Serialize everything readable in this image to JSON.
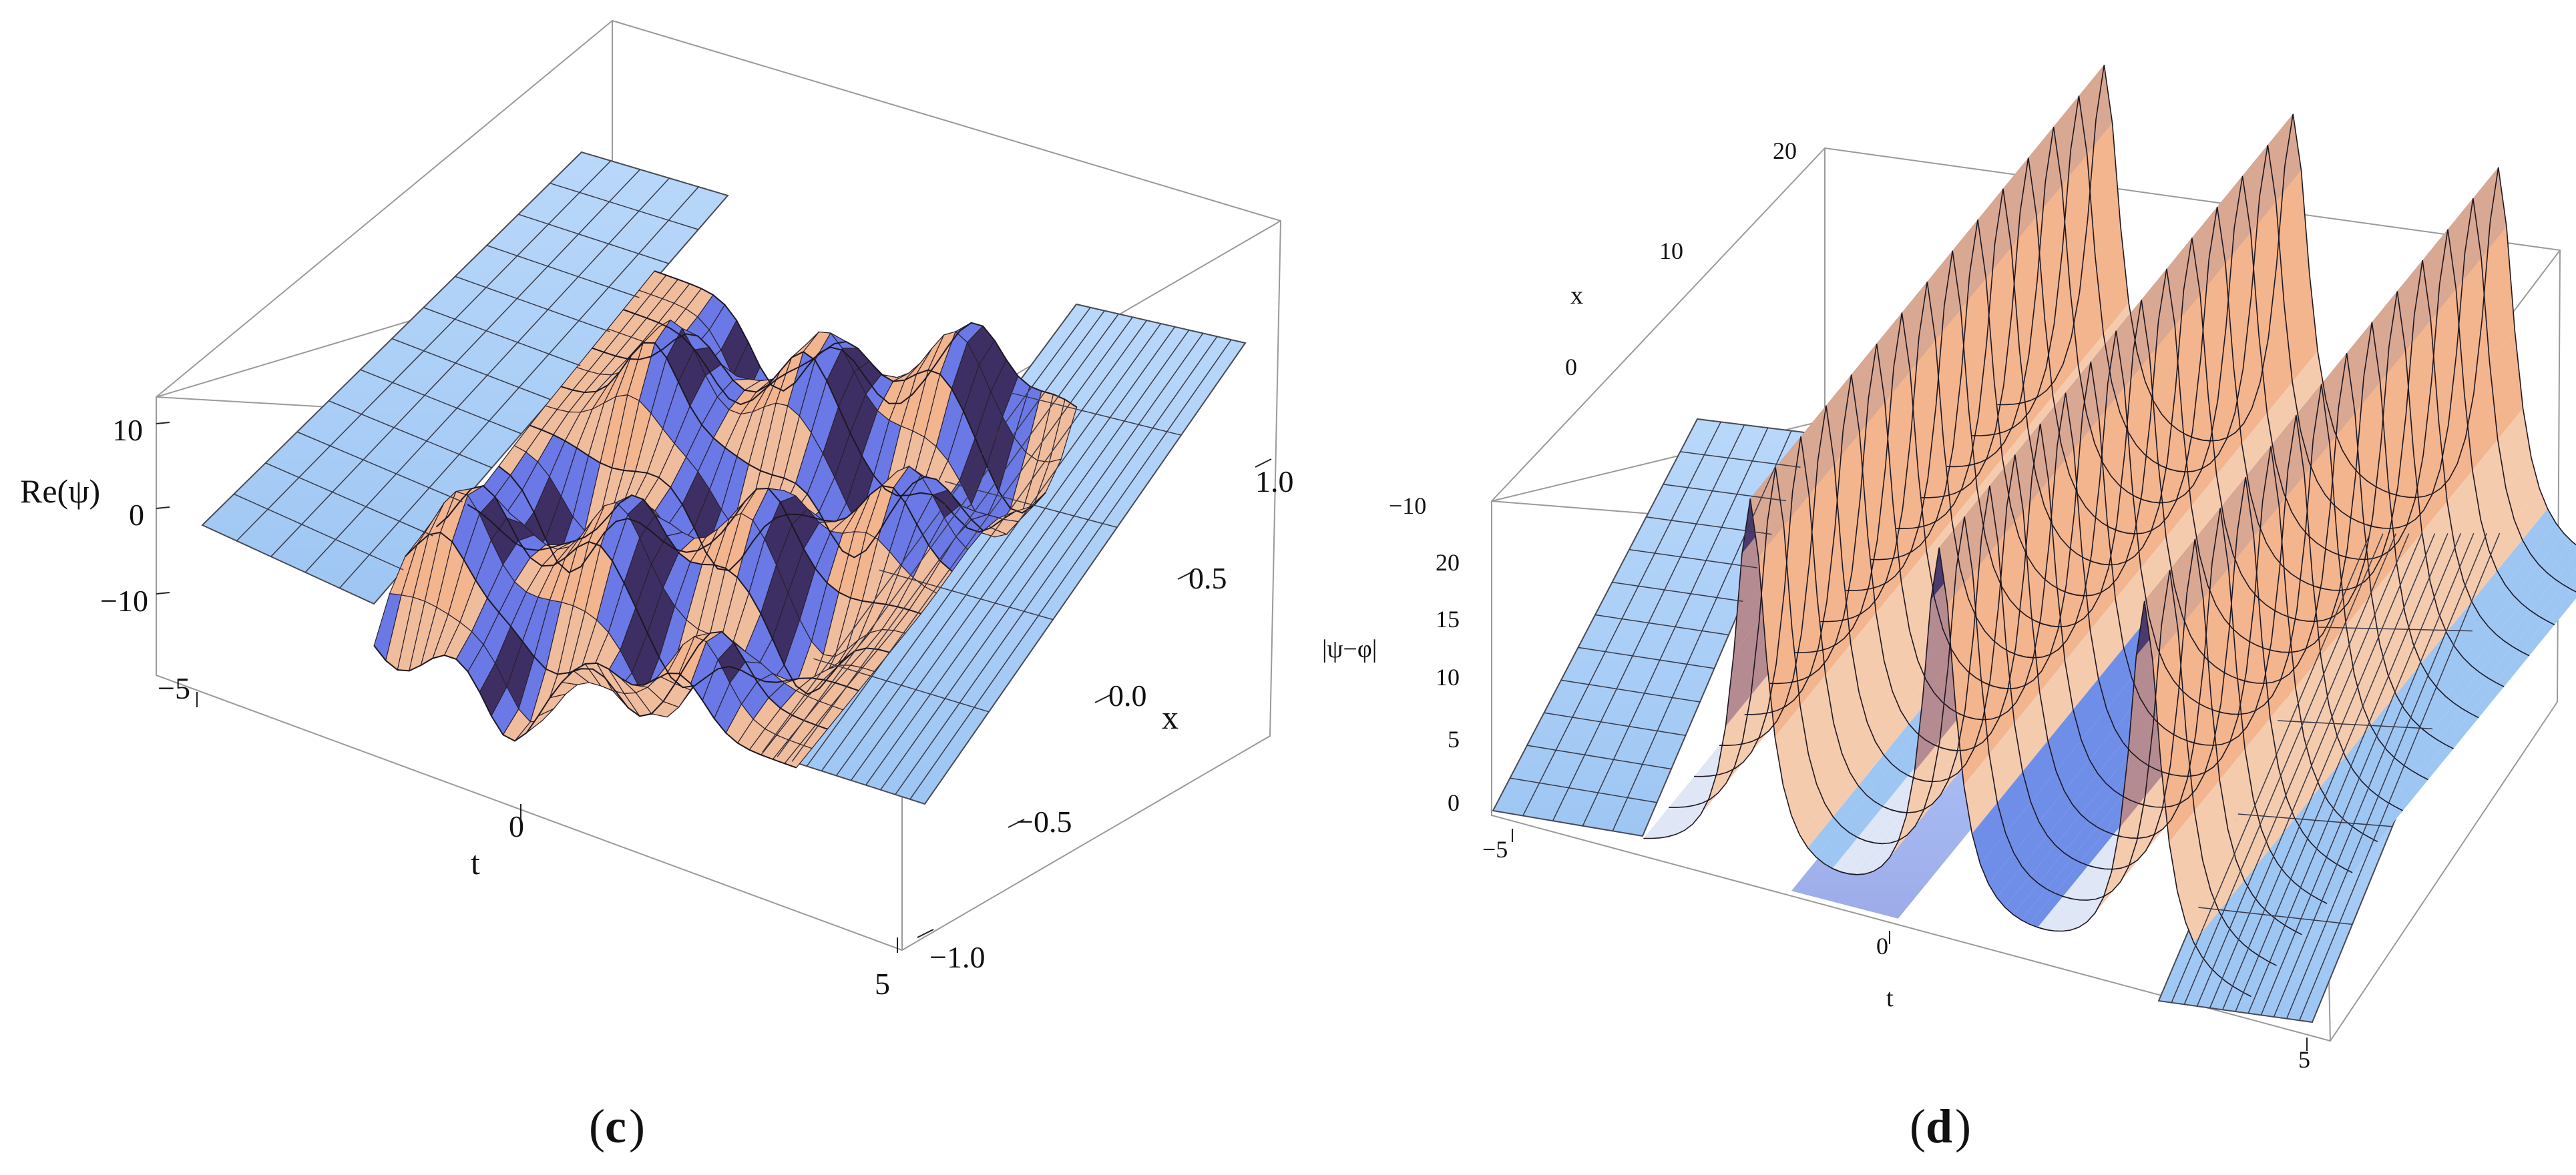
{
  "chart_data": [
    {
      "type": "surface3d",
      "panel_label": "c",
      "zlabel": "Re(ψ)",
      "xlabel": "x",
      "tlabel": "t",
      "t_ticks": [
        "−5",
        "0",
        "5"
      ],
      "x_ticks": [
        "−1.0",
        "−0.5",
        "0.0",
        "0.5",
        "1.0"
      ],
      "z_ticks": [
        "10",
        "0",
        "−10"
      ],
      "t_range": [
        -5,
        5
      ],
      "x_range": [
        -1,
        1
      ],
      "z_range": [
        -15,
        15
      ],
      "colors": {
        "flat": "#a9cdf5",
        "high": "#f2b58e",
        "low": "#3d2f63",
        "mid": "#6a79e6"
      },
      "crests": [
        {
          "t": -2.4,
          "amp": 14
        },
        {
          "t": -0.6,
          "amp": -13
        },
        {
          "t": 0.8,
          "amp": 12
        },
        {
          "t": 2.1,
          "amp": -12
        }
      ]
    },
    {
      "type": "surface3d",
      "panel_label": "d",
      "zlabel": "|ψ−φ|",
      "xlabel": "x",
      "tlabel": "t",
      "t_ticks": [
        "−5",
        "0",
        "5"
      ],
      "x_ticks": [
        "20",
        "10",
        "0",
        "−10"
      ],
      "z_ticks": [
        "20",
        "15",
        "10",
        "5",
        "0"
      ],
      "t_range": [
        -5,
        5
      ],
      "x_range": [
        -10,
        20
      ],
      "z_range": [
        0,
        22
      ],
      "colors": {
        "flat": "#a9cdf5",
        "high": "#f2b58e",
        "low": "#3d2f63",
        "mid": "#5d83ea"
      },
      "ridges": [
        {
          "t": -1.9,
          "height": 22
        },
        {
          "t": 0.4,
          "height": 22
        },
        {
          "t": 2.9,
          "height": 22
        }
      ]
    }
  ]
}
